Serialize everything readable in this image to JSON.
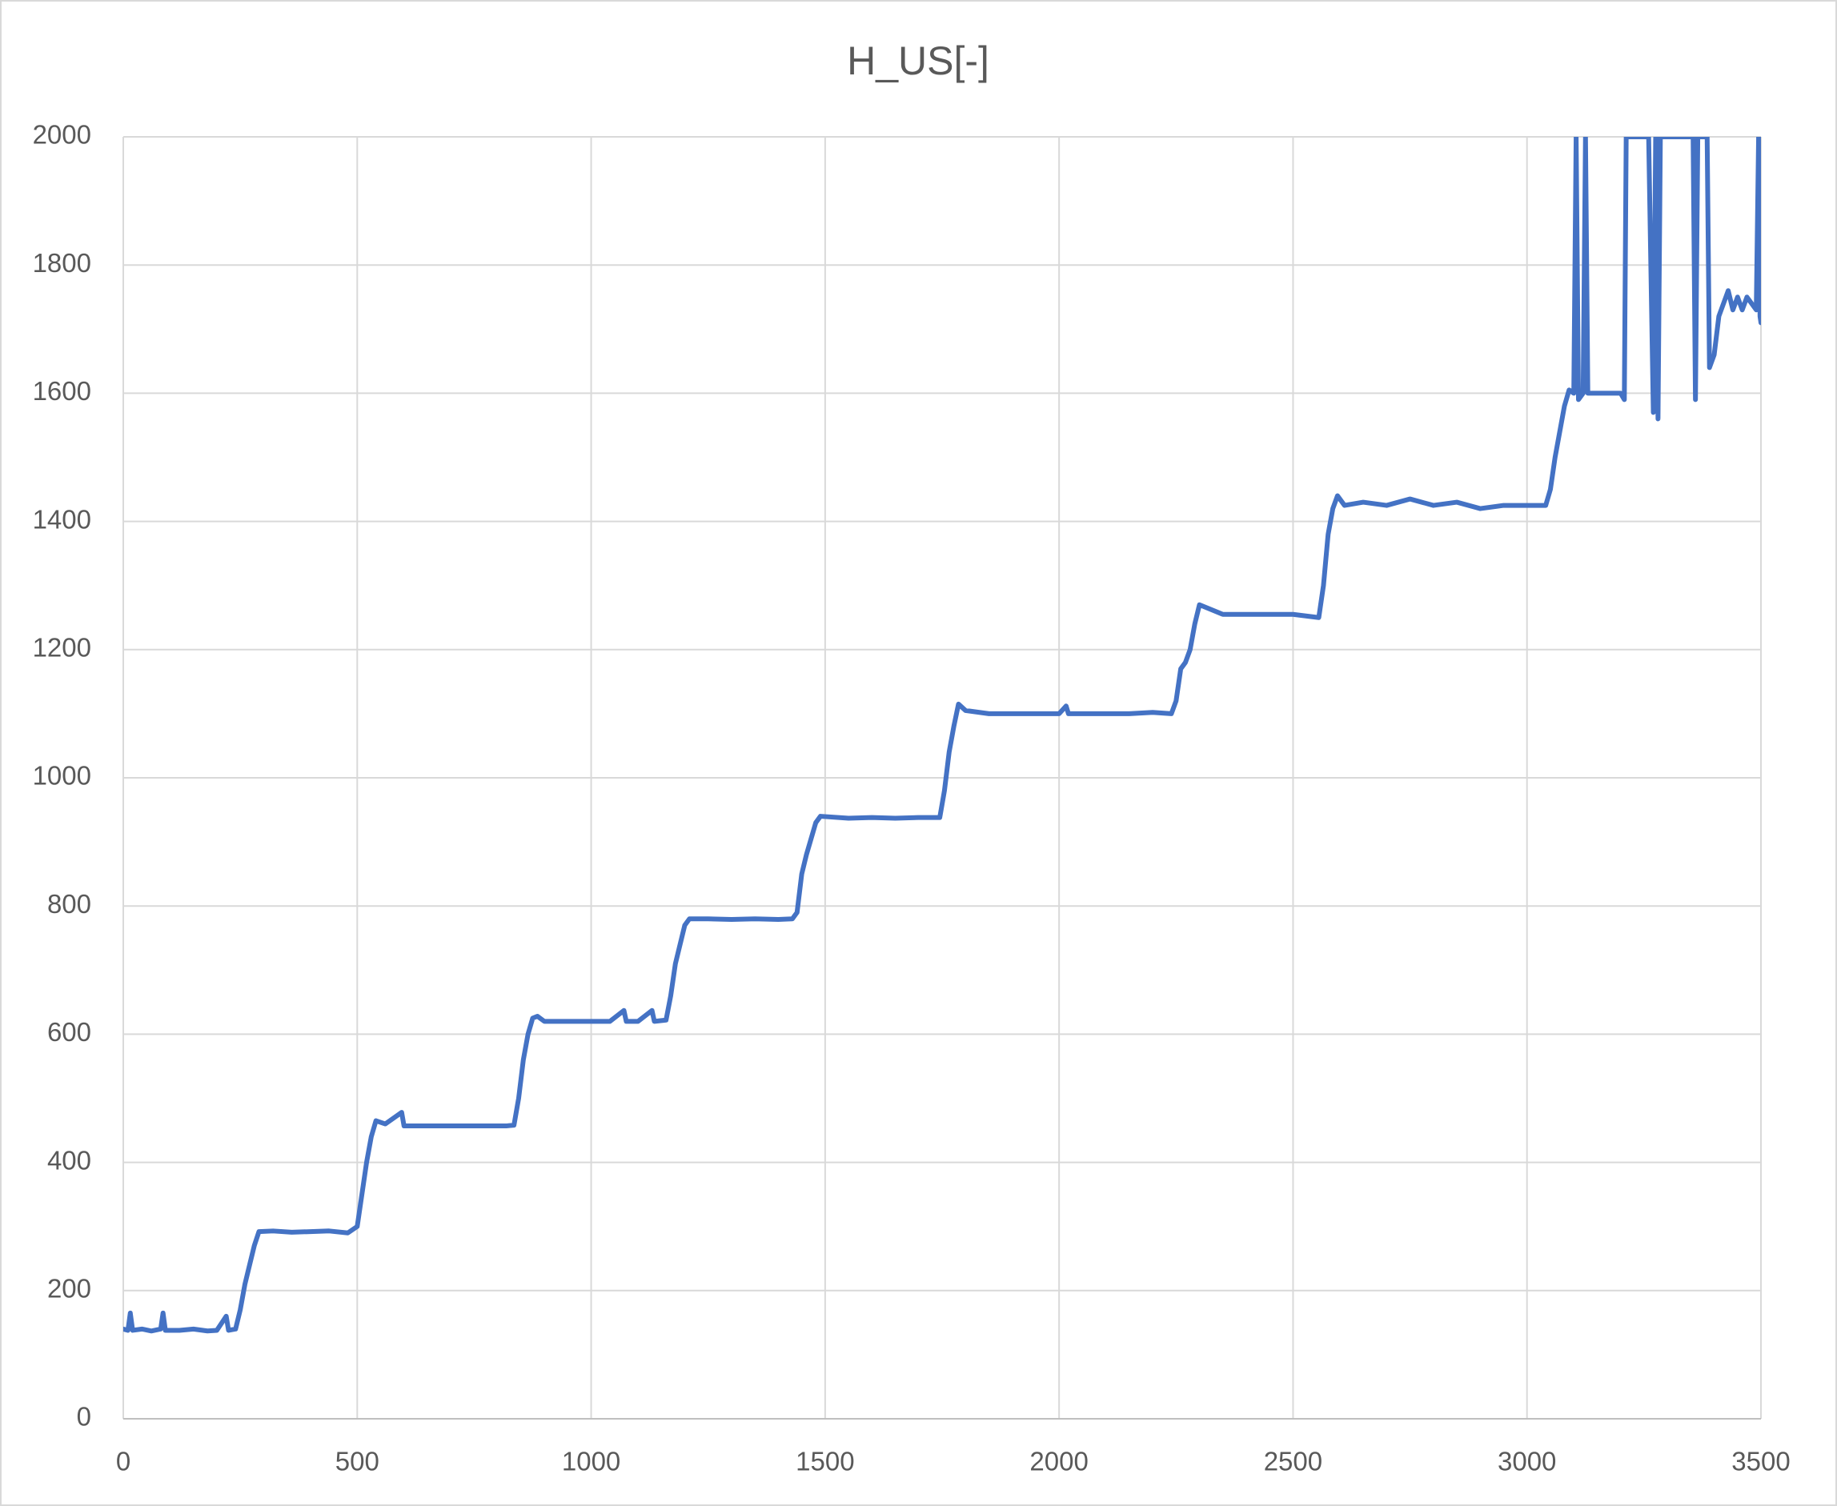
{
  "chart_data": {
    "type": "line",
    "title": "H_US[-]",
    "x": [
      0,
      10,
      15,
      20,
      40,
      60,
      80,
      85,
      90,
      120,
      150,
      180,
      200,
      220,
      225,
      240,
      250,
      260,
      270,
      280,
      290,
      320,
      360,
      400,
      440,
      480,
      490,
      500,
      510,
      520,
      530,
      540,
      560,
      595,
      600,
      640,
      700,
      760,
      820,
      835,
      845,
      855,
      865,
      875,
      885,
      900,
      960,
      1000,
      1040,
      1070,
      1075,
      1100,
      1130,
      1135,
      1160,
      1170,
      1180,
      1190,
      1200,
      1210,
      1250,
      1300,
      1350,
      1400,
      1430,
      1440,
      1450,
      1460,
      1470,
      1480,
      1490,
      1550,
      1600,
      1650,
      1700,
      1745,
      1755,
      1765,
      1775,
      1785,
      1800,
      1850,
      1900,
      2000,
      2015,
      2020,
      2100,
      2150,
      2200,
      2240,
      2250,
      2260,
      2270,
      2280,
      2290,
      2300,
      2350,
      2400,
      2450,
      2500,
      2555,
      2565,
      2575,
      2585,
      2595,
      2610,
      2650,
      2700,
      2750,
      2800,
      2850,
      2900,
      2950,
      3000,
      3040,
      3050,
      3060,
      3070,
      3080,
      3090,
      3100,
      3105,
      3110,
      3120,
      3125,
      3130,
      3150,
      3180,
      3200,
      3208,
      3212,
      3220,
      3260,
      3270,
      3275,
      3280,
      3285,
      3300,
      3355,
      3360,
      3365,
      3385,
      3390,
      3400,
      3410,
      3420,
      3430,
      3440,
      3450,
      3460,
      3470,
      3480,
      3490,
      3495,
      3498,
      3500
    ],
    "values": [
      140,
      138,
      165,
      138,
      140,
      137,
      140,
      165,
      138,
      138,
      140,
      137,
      138,
      160,
      138,
      140,
      170,
      210,
      240,
      270,
      292,
      293,
      291,
      292,
      293,
      290,
      295,
      300,
      350,
      400,
      440,
      465,
      460,
      478,
      457,
      457,
      457,
      457,
      457,
      458,
      500,
      560,
      600,
      625,
      628,
      620,
      620,
      620,
      620,
      637,
      620,
      620,
      637,
      620,
      622,
      660,
      710,
      740,
      770,
      780,
      780,
      779,
      780,
      779,
      780,
      790,
      850,
      880,
      905,
      930,
      940,
      937,
      938,
      937,
      938,
      938,
      980,
      1040,
      1080,
      1115,
      1105,
      1100,
      1100,
      1100,
      1112,
      1100,
      1100,
      1100,
      1102,
      1100,
      1120,
      1170,
      1180,
      1200,
      1240,
      1270,
      1255,
      1255,
      1255,
      1255,
      1250,
      1300,
      1380,
      1420,
      1440,
      1425,
      1430,
      1425,
      1435,
      1425,
      1430,
      1420,
      1425,
      1425,
      1425,
      1450,
      1500,
      1540,
      1580,
      1605,
      1600,
      2000,
      1590,
      1600,
      2000,
      1600,
      1600,
      1600,
      1600,
      1590,
      2000,
      2000,
      2000,
      1570,
      2000,
      1560,
      2000,
      2000,
      2000,
      1590,
      2000,
      2000,
      1640,
      1660,
      1720,
      1740,
      1760,
      1730,
      1750,
      1730,
      1750,
      1740,
      1730,
      2000,
      1720,
      1710
    ],
    "color": "#4472c4",
    "xlim": [
      0,
      3500
    ],
    "xticks": [
      0,
      500,
      1000,
      1500,
      2000,
      2500,
      3000,
      3500
    ],
    "ylim": [
      0,
      2000
    ],
    "yticks": [
      0,
      200,
      400,
      600,
      800,
      1000,
      1200,
      1400,
      1600,
      1800,
      2000
    ],
    "grid": true
  }
}
